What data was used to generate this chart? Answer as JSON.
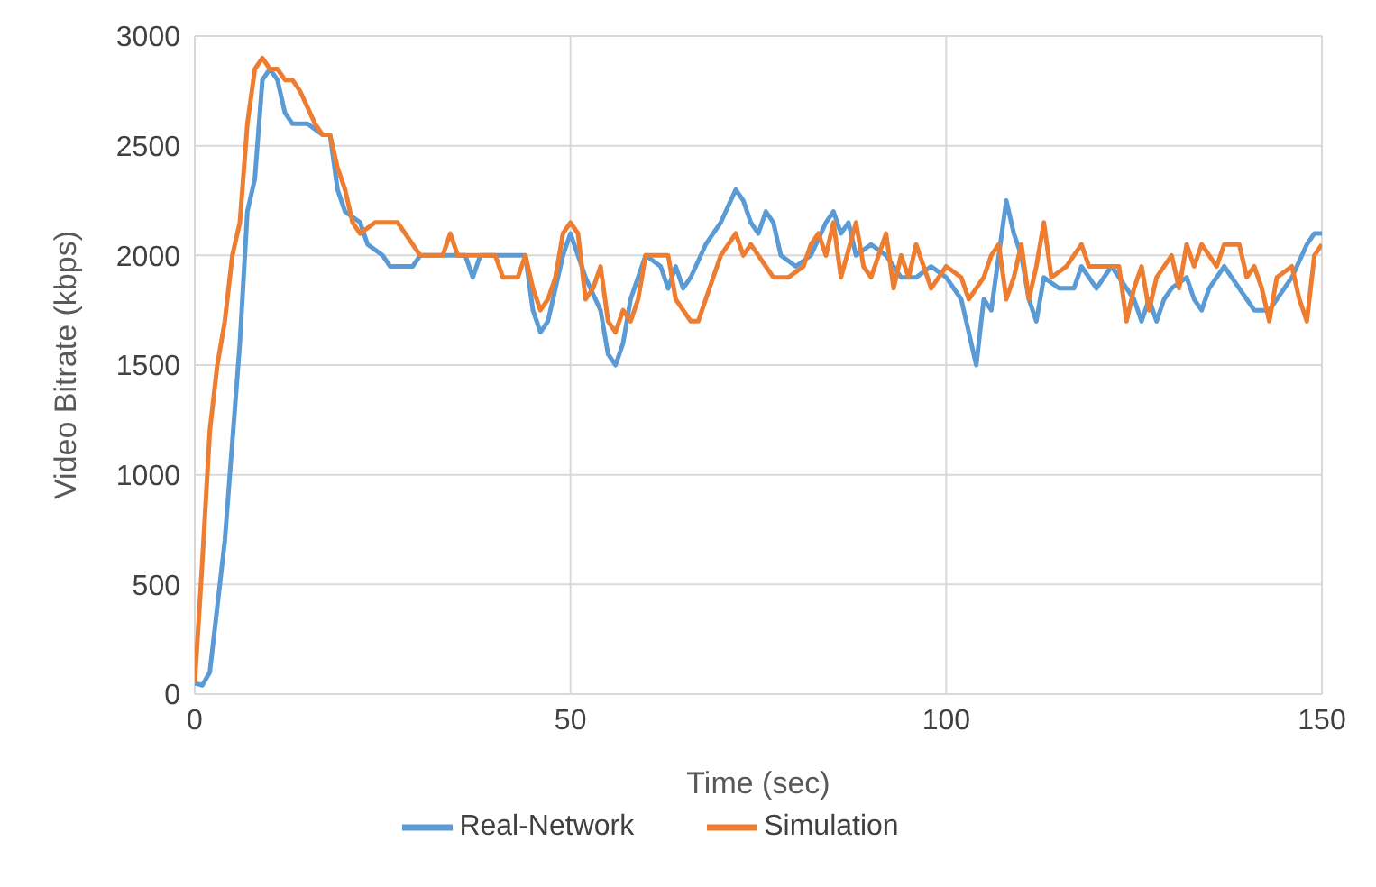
{
  "chart_data": {
    "type": "line",
    "xlabel": "Time (sec)",
    "ylabel": "Video Bitrate (kbps)",
    "xlim": [
      0,
      150
    ],
    "xticks": [
      0,
      50,
      100,
      150
    ],
    "ylim": [
      0,
      3000
    ],
    "yticks": [
      0,
      500,
      1000,
      1500,
      2000,
      2500,
      3000
    ],
    "grid": true,
    "legend": "bottom",
    "marker": "none",
    "line_style": "solid",
    "series": [
      {
        "name": "Real-Network",
        "color": "#5b9bd5",
        "x": [
          0,
          1,
          2,
          4,
          6,
          7,
          8,
          9,
          10,
          11,
          12,
          13,
          15,
          17,
          18,
          19,
          20,
          22,
          23,
          25,
          26,
          29,
          30,
          34,
          36,
          37,
          38,
          44,
          45,
          46,
          47,
          48,
          49,
          50,
          52,
          54,
          55,
          56,
          57,
          58,
          60,
          62,
          63,
          64,
          65,
          66,
          68,
          70,
          72,
          73,
          74,
          75,
          76,
          77,
          78,
          80,
          82,
          84,
          85,
          86,
          87,
          88,
          90,
          92,
          94,
          96,
          98,
          100,
          102,
          103,
          104,
          105,
          106,
          107,
          108,
          109,
          110,
          111,
          112,
          113,
          115,
          117,
          118,
          120,
          122,
          123,
          125,
          126,
          127,
          128,
          129,
          130,
          132,
          133,
          134,
          135,
          137,
          139,
          140,
          141,
          143,
          145,
          146,
          148,
          149,
          150
        ],
        "values": [
          50,
          40,
          100,
          700,
          1600,
          2200,
          2350,
          2800,
          2850,
          2800,
          2650,
          2600,
          2600,
          2550,
          2550,
          2300,
          2200,
          2150,
          2050,
          2000,
          1950,
          1950,
          2000,
          2000,
          2000,
          1900,
          2000,
          2000,
          1750,
          1650,
          1700,
          1850,
          2000,
          2100,
          1900,
          1750,
          1550,
          1500,
          1600,
          1800,
          2000,
          1950,
          1850,
          1950,
          1850,
          1900,
          2050,
          2150,
          2300,
          2250,
          2150,
          2100,
          2200,
          2150,
          2000,
          1950,
          2000,
          2150,
          2200,
          2100,
          2150,
          2000,
          2050,
          2000,
          1900,
          1900,
          1950,
          1900,
          1800,
          1650,
          1500,
          1800,
          1750,
          2000,
          2250,
          2100,
          2000,
          1800,
          1700,
          1900,
          1850,
          1850,
          1950,
          1850,
          1950,
          1900,
          1800,
          1700,
          1800,
          1700,
          1800,
          1850,
          1900,
          1800,
          1750,
          1850,
          1950,
          1850,
          1800,
          1750,
          1750,
          1850,
          1900,
          2050,
          2100,
          2100
        ]
      },
      {
        "name": "Simulation",
        "color": "#ed7d31",
        "x": [
          0,
          1,
          2,
          3,
          4,
          5,
          6,
          7,
          8,
          9,
          10,
          11,
          12,
          13,
          14,
          16,
          17,
          18,
          19,
          20,
          21,
          22,
          24,
          27,
          28,
          30,
          33,
          34,
          35,
          40,
          41,
          43,
          44,
          45,
          46,
          47,
          48,
          49,
          50,
          51,
          52,
          53,
          54,
          55,
          56,
          57,
          58,
          59,
          60,
          62,
          63,
          64,
          65,
          66,
          67,
          68,
          70,
          72,
          73,
          74,
          76,
          77,
          79,
          81,
          82,
          83,
          84,
          85,
          86,
          88,
          89,
          90,
          91,
          92,
          93,
          94,
          95,
          96,
          97,
          98,
          100,
          102,
          103,
          105,
          106,
          107,
          108,
          109,
          110,
          111,
          112,
          113,
          114,
          116,
          118,
          119,
          121,
          123,
          124,
          125,
          126,
          127,
          128,
          130,
          131,
          132,
          133,
          134,
          136,
          137,
          139,
          140,
          141,
          142,
          143,
          144,
          146,
          147,
          148,
          149,
          150
        ],
        "values": [
          50,
          600,
          1200,
          1500,
          1700,
          2000,
          2150,
          2600,
          2850,
          2900,
          2850,
          2850,
          2800,
          2800,
          2750,
          2600,
          2550,
          2550,
          2400,
          2300,
          2150,
          2100,
          2150,
          2150,
          2100,
          2000,
          2000,
          2100,
          2000,
          2000,
          1900,
          1900,
          2000,
          1850,
          1750,
          1800,
          1900,
          2100,
          2150,
          2100,
          1800,
          1850,
          1950,
          1700,
          1650,
          1750,
          1700,
          1800,
          2000,
          2000,
          2000,
          1800,
          1750,
          1700,
          1700,
          1800,
          2000,
          2100,
          2000,
          2050,
          1950,
          1900,
          1900,
          1950,
          2050,
          2100,
          2000,
          2150,
          1900,
          2150,
          1950,
          1900,
          2000,
          2100,
          1850,
          2000,
          1900,
          2050,
          1950,
          1850,
          1950,
          1900,
          1800,
          1900,
          2000,
          2050,
          1800,
          1900,
          2050,
          1800,
          1950,
          2150,
          1900,
          1950,
          2050,
          1950,
          1950,
          1950,
          1700,
          1850,
          1950,
          1750,
          1900,
          2000,
          1850,
          2050,
          1950,
          2050,
          1950,
          2050,
          2050,
          1900,
          1950,
          1850,
          1700,
          1900,
          1950,
          1800,
          1700,
          2000,
          2050
        ]
      }
    ]
  }
}
